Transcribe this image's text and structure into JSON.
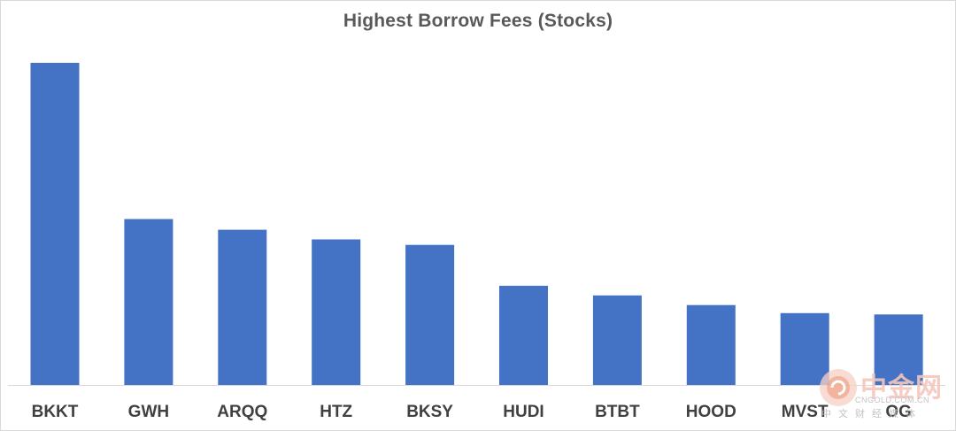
{
  "chart_data": {
    "type": "bar",
    "title": "Highest Borrow Fees (Stocks)",
    "categories": [
      "BKKT",
      "GWH",
      "ARQQ",
      "HTZ",
      "BKSY",
      "HUDI",
      "BTBT",
      "HOOD",
      "MVST",
      "OG"
    ],
    "series": [
      {
        "values": [
          100,
          51.5,
          48.2,
          45.2,
          43.5,
          30.8,
          27.8,
          24.8,
          22.3,
          21.9
        ],
        "color": "#4472c4"
      }
    ],
    "ylim": [
      0,
      100
    ],
    "grid": false,
    "legend": "none",
    "xlabel": "",
    "ylabel": ""
  },
  "watermark": {
    "logo_text": "中金网",
    "domain": "CNGOLD.COM.CN",
    "tagline": "中文财经媒体"
  },
  "colors": {
    "bar": "#4472c4",
    "axis_line": "#d9d9d9",
    "title": "#595959",
    "tick_label": "#404040"
  }
}
